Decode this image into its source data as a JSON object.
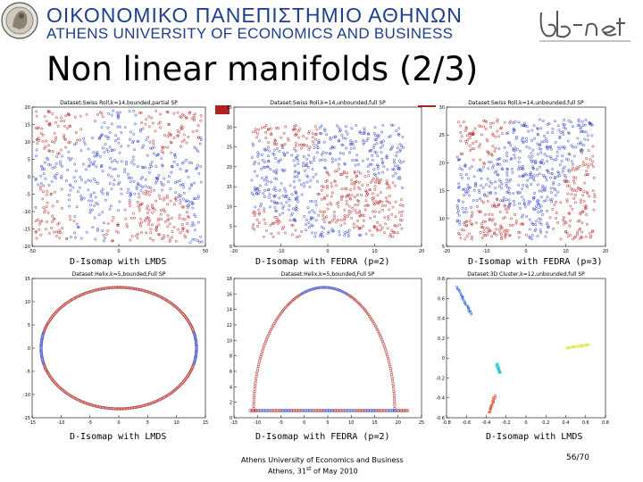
{
  "header": {
    "university_greek": "ΟΙΚΟΝΟΜΙΚΟ ΠΑΝΕΠΙΣΤΗΜΙΟ ΑΘΗΝΩΝ",
    "university_english": "ATHENS UNIVERSITY OF ECONOMICS AND BUSINESS",
    "logo_text": "db-net"
  },
  "slide": {
    "title": "Non linear manifolds (2/3)"
  },
  "captions": {
    "p1": "D-Isomap with LMDS",
    "p2": "D-Isomap with FEDRA (p=2)",
    "p3": "D-Isomap with FEDRA (p=3)",
    "p4": "D-Isomap with LMDS",
    "p5": "D-Isomap with FEDRA (p=2)",
    "p6": "D-Isomap with LMDS"
  },
  "footer": {
    "line1": "Athens University of Economics and Business",
    "line2_prefix": "Athens, 31",
    "line2_sup": "st",
    "line2_suffix": " of May 2010",
    "page": "56/70"
  },
  "colors": {
    "brand_blue": "#1c3f8e",
    "red_points": "#b22222",
    "blue_points": "#2b3fc4"
  },
  "chart_data": [
    {
      "type": "scatter",
      "title": "Dataset:Swiss Roll,k=14,bounded,partial SP",
      "yticks": [
        "20",
        "15",
        "10",
        "5",
        "0",
        "-5",
        "-10",
        "-15",
        "-20"
      ],
      "xticks": [
        "-50",
        "0",
        "50"
      ],
      "xlim": [
        -50,
        50
      ],
      "ylim": [
        -20,
        20
      ],
      "series": [
        {
          "values": []
        }
      ]
    },
    {
      "type": "scatter",
      "title": "Dataset:Swiss Roll,k=14,unbounded,full SP",
      "yticks": [
        "35",
        "30",
        "25",
        "20",
        "15",
        "10",
        "5",
        "0"
      ],
      "xticks": [
        "-20",
        "-10",
        "0",
        "10",
        "20"
      ],
      "xlim": [
        -20,
        20
      ],
      "ylim": [
        0,
        35
      ],
      "series": [
        {
          "values": []
        }
      ]
    },
    {
      "type": "scatter",
      "title": "Dataset:Swiss Roll,k=14,unbounded,full SP",
      "yticks": [
        "30",
        "25",
        "20",
        "15",
        "10",
        "5"
      ],
      "xticks": [
        "-20",
        "-10",
        "0",
        "10",
        "20"
      ],
      "xlim": [
        -20,
        20
      ],
      "ylim": [
        0,
        30
      ],
      "series": [
        {
          "values": []
        }
      ]
    },
    {
      "type": "scatter",
      "title": "Dataset:Helix,k=5,bounded,Full SP",
      "yticks": [
        "15",
        "10",
        "5",
        "0",
        "-5",
        "-10",
        "-15"
      ],
      "xticks": [
        "-15",
        "-10",
        "-5",
        "0",
        "5",
        "10",
        "15"
      ],
      "xlim": [
        -15,
        15
      ],
      "ylim": [
        -15,
        15
      ],
      "series": [
        {
          "values": []
        }
      ]
    },
    {
      "type": "scatter",
      "title": "Dataset:Helix,k=5,bounded,Full SP",
      "yticks": [
        "18",
        "16",
        "14",
        "12",
        "10",
        "8",
        "6",
        "4",
        "2",
        "0"
      ],
      "xticks": [
        "-15",
        "-10",
        "-5",
        "0",
        "5",
        "10",
        "15",
        "20",
        "25"
      ],
      "xlim": [
        -15,
        25
      ],
      "ylim": [
        0,
        18
      ],
      "series": [
        {
          "values": []
        }
      ]
    },
    {
      "type": "scatter",
      "title": "Dataset:3D Cluster,k=12,unbounded,full SP",
      "yticks": [
        "0.8",
        "0.6",
        "0.4",
        "0.2",
        "0",
        "-0.2",
        "-0.4",
        "-0.6"
      ],
      "xticks": [
        "-0.8",
        "-0.6",
        "-0.4",
        "-0.2",
        "0",
        "0.2",
        "0.4",
        "0.6",
        "0.8"
      ],
      "xlim": [
        -0.8,
        0.8
      ],
      "ylim": [
        -0.6,
        0.8
      ],
      "series": [
        {
          "values": []
        }
      ]
    }
  ]
}
